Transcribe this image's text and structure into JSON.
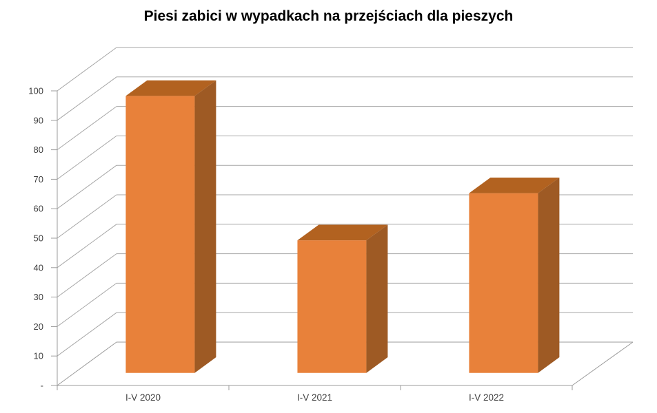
{
  "title": "Piesi zabici w wypadkach na przejściach dla pieszych",
  "chart_data": {
    "type": "bar",
    "variant": "3d-column",
    "title": "Piesi zabici w wypadkach na przejściach dla pieszych",
    "categories": [
      "I-V 2020",
      "I-V 2021",
      "I-V 2022"
    ],
    "values": [
      94,
      45,
      61
    ],
    "xlabel": "",
    "ylabel": "",
    "ylim": [
      0,
      100
    ],
    "ytick_step": 10,
    "ytick_labels": [
      "-",
      "10",
      "20",
      "30",
      "40",
      "50",
      "60",
      "70",
      "80",
      "90",
      "100"
    ],
    "grid": true,
    "legend": "none",
    "colors": {
      "bar_front": "#E8813A",
      "bar_top": "#B26220",
      "bar_side": "#9E5A24",
      "gridline": "#A6A6A6",
      "axis_line": "#9B9B9B",
      "axis_text": "#404040",
      "title_text": "#000000",
      "background": "#FFFFFF"
    }
  }
}
